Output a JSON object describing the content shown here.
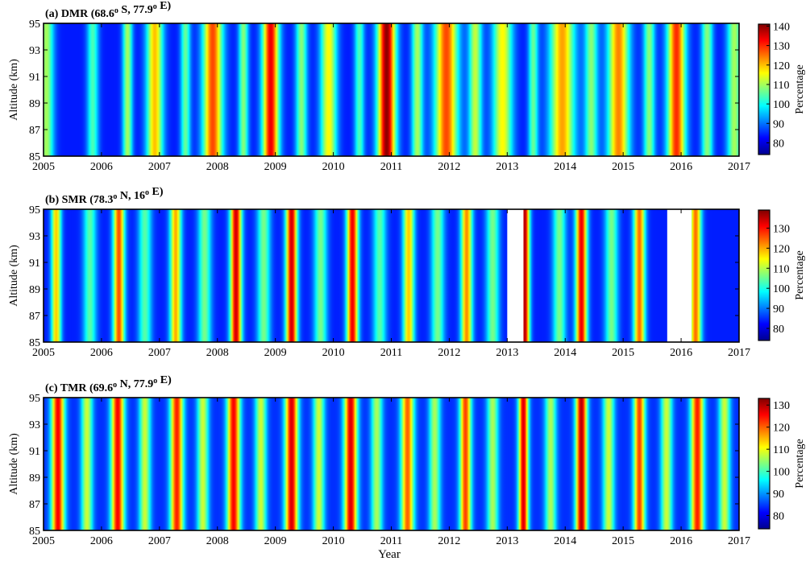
{
  "figure": {
    "xlabel": "Year"
  },
  "chart_data": [
    {
      "type": "heatmap",
      "title": "(a) DMR (68.6° S, 77.9° E)",
      "title_parts": {
        "prefix": "(a) DMR (68.6",
        "deg1": "o",
        "mid": " S, 77.9",
        "deg2": "o",
        "suffix": " E)"
      },
      "xlabel": "",
      "ylabel": "Altitude (km)",
      "colorbar_label": "Percentage",
      "xlim": [
        2005,
        2017
      ],
      "ylim": [
        85,
        95
      ],
      "xticks": [
        2005,
        2006,
        2007,
        2008,
        2009,
        2010,
        2011,
        2012,
        2013,
        2014,
        2015,
        2016,
        2017
      ],
      "yticks": [
        85,
        87,
        89,
        91,
        93,
        95
      ],
      "clim": [
        74,
        141
      ],
      "cticks": [
        80,
        90,
        100,
        110,
        120,
        130,
        140
      ],
      "seasonal_peaks": [
        {
          "x": 2005.05,
          "value": 110,
          "width": 0.09
        },
        {
          "x": 2005.85,
          "value": 104,
          "width": 0.07
        },
        {
          "x": 2006.45,
          "value": 110,
          "width": 0.06
        },
        {
          "x": 2006.92,
          "value": 120,
          "width": 0.1
        },
        {
          "x": 2007.45,
          "value": 106,
          "width": 0.06
        },
        {
          "x": 2007.92,
          "value": 128,
          "width": 0.12
        },
        {
          "x": 2008.45,
          "value": 108,
          "width": 0.06
        },
        {
          "x": 2008.92,
          "value": 134,
          "width": 0.1
        },
        {
          "x": 2009.45,
          "value": 108,
          "width": 0.07
        },
        {
          "x": 2009.92,
          "value": 116,
          "width": 0.1
        },
        {
          "x": 2010.45,
          "value": 104,
          "width": 0.06
        },
        {
          "x": 2010.92,
          "value": 140,
          "width": 0.11
        },
        {
          "x": 2011.45,
          "value": 110,
          "width": 0.07
        },
        {
          "x": 2011.95,
          "value": 128,
          "width": 0.14
        },
        {
          "x": 2012.45,
          "value": 112,
          "width": 0.08
        },
        {
          "x": 2012.92,
          "value": 116,
          "width": 0.12
        },
        {
          "x": 2013.45,
          "value": 106,
          "width": 0.06
        },
        {
          "x": 2013.95,
          "value": 122,
          "width": 0.15
        },
        {
          "x": 2014.45,
          "value": 108,
          "width": 0.08
        },
        {
          "x": 2014.92,
          "value": 124,
          "width": 0.13
        },
        {
          "x": 2015.45,
          "value": 108,
          "width": 0.07
        },
        {
          "x": 2015.92,
          "value": 130,
          "width": 0.11
        },
        {
          "x": 2016.45,
          "value": 108,
          "width": 0.07
        },
        {
          "x": 2016.92,
          "value": 110,
          "width": 0.09
        }
      ],
      "data_gaps": []
    },
    {
      "type": "heatmap",
      "title": "(b) SMR (78.3° N, 16° E)",
      "title_parts": {
        "prefix": "(b) SMR (78.3",
        "deg1": "o",
        "mid": " N, 16",
        "deg2": "o",
        "suffix": " E)"
      },
      "xlabel": "",
      "ylabel": "Altitude (km)",
      "colorbar_label": "Percentage",
      "xlim": [
        2005,
        2017
      ],
      "ylim": [
        85,
        95
      ],
      "xticks": [
        2005,
        2006,
        2007,
        2008,
        2009,
        2010,
        2011,
        2012,
        2013,
        2014,
        2015,
        2016,
        2017
      ],
      "yticks": [
        85,
        87,
        89,
        91,
        93,
        95
      ],
      "clim": [
        74,
        139
      ],
      "cticks": [
        80,
        90,
        100,
        110,
        120,
        130
      ],
      "seasonal_peaks": [
        {
          "x": 2005.22,
          "value": 118,
          "width": 0.06
        },
        {
          "x": 2005.8,
          "value": 104,
          "width": 0.08
        },
        {
          "x": 2006.3,
          "value": 126,
          "width": 0.07
        },
        {
          "x": 2006.75,
          "value": 104,
          "width": 0.08
        },
        {
          "x": 2007.28,
          "value": 120,
          "width": 0.07
        },
        {
          "x": 2007.78,
          "value": 106,
          "width": 0.08
        },
        {
          "x": 2008.32,
          "value": 134,
          "width": 0.07
        },
        {
          "x": 2008.8,
          "value": 106,
          "width": 0.08
        },
        {
          "x": 2009.28,
          "value": 134,
          "width": 0.07
        },
        {
          "x": 2009.78,
          "value": 106,
          "width": 0.08
        },
        {
          "x": 2010.33,
          "value": 132,
          "width": 0.07
        },
        {
          "x": 2010.8,
          "value": 104,
          "width": 0.08
        },
        {
          "x": 2011.3,
          "value": 118,
          "width": 0.07
        },
        {
          "x": 2011.8,
          "value": 106,
          "width": 0.08
        },
        {
          "x": 2012.3,
          "value": 122,
          "width": 0.07
        },
        {
          "x": 2012.75,
          "value": 106,
          "width": 0.08
        },
        {
          "x": 2013.3,
          "value": 136,
          "width": 0.06
        },
        {
          "x": 2013.9,
          "value": 106,
          "width": 0.08
        },
        {
          "x": 2014.28,
          "value": 132,
          "width": 0.07
        },
        {
          "x": 2014.8,
          "value": 106,
          "width": 0.08
        },
        {
          "x": 2015.28,
          "value": 124,
          "width": 0.07
        },
        {
          "x": 2016.25,
          "value": 124,
          "width": 0.07
        }
      ],
      "data_gaps": [
        [
          2013.0,
          2013.28
        ],
        [
          2015.76,
          2016.18
        ]
      ]
    },
    {
      "type": "heatmap",
      "title": "(c) TMR (69.6° N, 77.9° E)",
      "title_parts": {
        "prefix": "(c) TMR (69.6",
        "deg1": "o",
        "mid": " N, 77.9",
        "deg2": "o",
        "suffix": " E)"
      },
      "xlabel": "Year",
      "ylabel": "Altitude (km)",
      "colorbar_label": "Percentage",
      "xlim": [
        2005,
        2017
      ],
      "ylim": [
        85,
        95
      ],
      "xticks": [
        2005,
        2006,
        2007,
        2008,
        2009,
        2010,
        2011,
        2012,
        2013,
        2014,
        2015,
        2016,
        2017
      ],
      "yticks": [
        85,
        87,
        89,
        91,
        93,
        95
      ],
      "clim": [
        74,
        133
      ],
      "cticks": [
        80,
        90,
        100,
        110,
        120,
        130
      ],
      "seasonal_peaks": [
        {
          "x": 2005.25,
          "value": 126,
          "width": 0.08
        },
        {
          "x": 2005.75,
          "value": 108,
          "width": 0.07
        },
        {
          "x": 2006.28,
          "value": 126,
          "width": 0.08
        },
        {
          "x": 2006.75,
          "value": 108,
          "width": 0.07
        },
        {
          "x": 2007.3,
          "value": 124,
          "width": 0.08
        },
        {
          "x": 2007.75,
          "value": 108,
          "width": 0.07
        },
        {
          "x": 2008.28,
          "value": 126,
          "width": 0.08
        },
        {
          "x": 2008.75,
          "value": 108,
          "width": 0.07
        },
        {
          "x": 2009.28,
          "value": 128,
          "width": 0.08
        },
        {
          "x": 2009.75,
          "value": 108,
          "width": 0.07
        },
        {
          "x": 2010.3,
          "value": 128,
          "width": 0.08
        },
        {
          "x": 2010.75,
          "value": 106,
          "width": 0.07
        },
        {
          "x": 2011.28,
          "value": 120,
          "width": 0.08
        },
        {
          "x": 2011.75,
          "value": 106,
          "width": 0.07
        },
        {
          "x": 2012.28,
          "value": 122,
          "width": 0.07
        },
        {
          "x": 2012.75,
          "value": 106,
          "width": 0.07
        },
        {
          "x": 2013.28,
          "value": 128,
          "width": 0.06
        },
        {
          "x": 2013.75,
          "value": 106,
          "width": 0.07
        },
        {
          "x": 2014.28,
          "value": 130,
          "width": 0.07
        },
        {
          "x": 2014.75,
          "value": 108,
          "width": 0.07
        },
        {
          "x": 2015.28,
          "value": 122,
          "width": 0.07
        },
        {
          "x": 2015.75,
          "value": 108,
          "width": 0.07
        },
        {
          "x": 2016.28,
          "value": 124,
          "width": 0.08
        },
        {
          "x": 2016.75,
          "value": 108,
          "width": 0.07
        }
      ],
      "data_gaps": []
    }
  ],
  "colormap": [
    "#00008f",
    "#0000ff",
    "#007fff",
    "#00ffff",
    "#7fff7f",
    "#ffff00",
    "#ff7f00",
    "#ff0000",
    "#7f0000"
  ]
}
